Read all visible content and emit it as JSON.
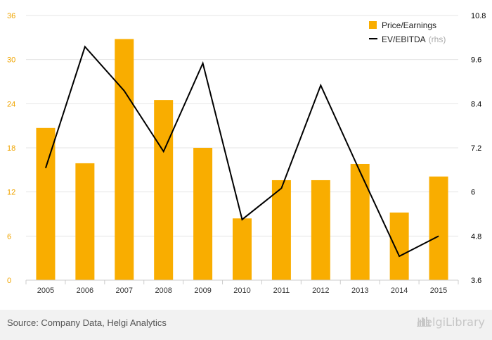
{
  "chart_data": {
    "type": "bar+line",
    "categories": [
      "2005",
      "2006",
      "2007",
      "2008",
      "2009",
      "2010",
      "2011",
      "2012",
      "2013",
      "2014",
      "2015"
    ],
    "series": [
      {
        "name": "Price/Earnings",
        "type": "bar",
        "axis": "left",
        "color": "#f9ad00",
        "values": [
          20.7,
          15.9,
          32.8,
          24.5,
          18.0,
          8.4,
          13.6,
          13.6,
          15.8,
          9.2,
          14.1
        ]
      },
      {
        "name": "EV/EBITDA",
        "type": "line",
        "axis": "right",
        "color": "#000000",
        "values": [
          6.65,
          9.95,
          8.75,
          7.1,
          9.5,
          5.25,
          6.1,
          8.9,
          6.55,
          4.25,
          4.8
        ]
      }
    ],
    "y_left": {
      "min": 0,
      "max": 36,
      "ticks": [
        0,
        6,
        12,
        18,
        24,
        30,
        36
      ],
      "color": "#f0a500"
    },
    "y_right": {
      "min": 3.6,
      "max": 10.8,
      "ticks": [
        "3.6",
        "4.8",
        "6",
        "7.2",
        "8.4",
        "9.6",
        "10.8"
      ]
    },
    "grid": true,
    "legend": {
      "placement": "top-right",
      "bar_label": "Price/Earnings",
      "line_label": "EV/EBITDA",
      "line_suffix": "(rhs)"
    }
  },
  "footer": {
    "source": "Source: Company Data, Helgi Analytics",
    "brand_name": "HelgiLibrary"
  }
}
